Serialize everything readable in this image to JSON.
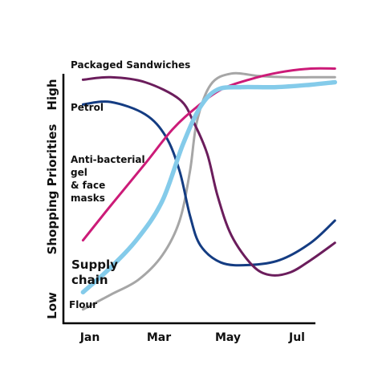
{
  "chart_data": {
    "type": "line",
    "ylabel": "Shopping Priorities",
    "y_high_label": "High",
    "y_low_label": "Low",
    "x_ticks": [
      "Jan",
      "Mar",
      "May",
      "Jul"
    ],
    "xlim": [
      "Jan",
      "Jul"
    ],
    "ylim": [
      0,
      100
    ],
    "grid": false,
    "legend": "inline labels",
    "series": [
      {
        "name": "Packaged Sandwiches",
        "color": "#6b1d5c",
        "label_lines": [
          "Packaged Sandwiches"
        ],
        "points": [
          [
            -0.1,
            95
          ],
          [
            0.3,
            96
          ],
          [
            0.8,
            94
          ],
          [
            1.3,
            87
          ],
          [
            1.5,
            78
          ],
          [
            1.7,
            65
          ],
          [
            1.85,
            48
          ],
          [
            2.05,
            32
          ],
          [
            2.35,
            20
          ],
          [
            2.6,
            16
          ],
          [
            2.9,
            17
          ],
          [
            3.2,
            22
          ],
          [
            3.55,
            29
          ]
        ]
      },
      {
        "name": "Petrol",
        "color": "#143c82",
        "label_lines": [
          "Petrol"
        ],
        "points": [
          [
            -0.1,
            85
          ],
          [
            0.3,
            86
          ],
          [
            0.8,
            81
          ],
          [
            1.1,
            72
          ],
          [
            1.3,
            58
          ],
          [
            1.45,
            40
          ],
          [
            1.6,
            28
          ],
          [
            1.9,
            21
          ],
          [
            2.3,
            20
          ],
          [
            2.75,
            22
          ],
          [
            3.2,
            29
          ],
          [
            3.55,
            38
          ]
        ]
      },
      {
        "name": "Anti-bacterial gel & face masks",
        "color": "#cc1b78",
        "label_lines": [
          "Anti-bacterial",
          "gel",
          "& face",
          "masks"
        ],
        "points": [
          [
            -0.1,
            30
          ],
          [
            0.3,
            44
          ],
          [
            0.8,
            61
          ],
          [
            1.2,
            75
          ],
          [
            1.55,
            84
          ],
          [
            1.9,
            91
          ],
          [
            2.3,
            95
          ],
          [
            2.75,
            98
          ],
          [
            3.2,
            99.5
          ],
          [
            3.55,
            99.5
          ]
        ]
      },
      {
        "name": "Supply chain",
        "color": "#84cbea",
        "label_lines": [
          "Supply",
          "chain"
        ],
        "points": [
          [
            -0.1,
            9
          ],
          [
            0.3,
            19
          ],
          [
            0.7,
            31
          ],
          [
            1.05,
            46
          ],
          [
            1.35,
            69
          ],
          [
            1.6,
            84
          ],
          [
            1.85,
            91
          ],
          [
            2.2,
            92
          ],
          [
            2.7,
            92
          ],
          [
            3.2,
            93
          ],
          [
            3.55,
            94
          ]
        ]
      },
      {
        "name": "Flour",
        "color": "#a6a6a6",
        "label_lines": [
          "Flour"
        ],
        "points": [
          [
            -0.1,
            2
          ],
          [
            0.3,
            8
          ],
          [
            0.7,
            14
          ],
          [
            1.05,
            24
          ],
          [
            1.3,
            38
          ],
          [
            1.45,
            58
          ],
          [
            1.55,
            78
          ],
          [
            1.75,
            93
          ],
          [
            2.05,
            97.5
          ],
          [
            2.45,
            96.5
          ],
          [
            2.85,
            96
          ],
          [
            3.2,
            96
          ],
          [
            3.55,
            96
          ]
        ]
      }
    ]
  }
}
